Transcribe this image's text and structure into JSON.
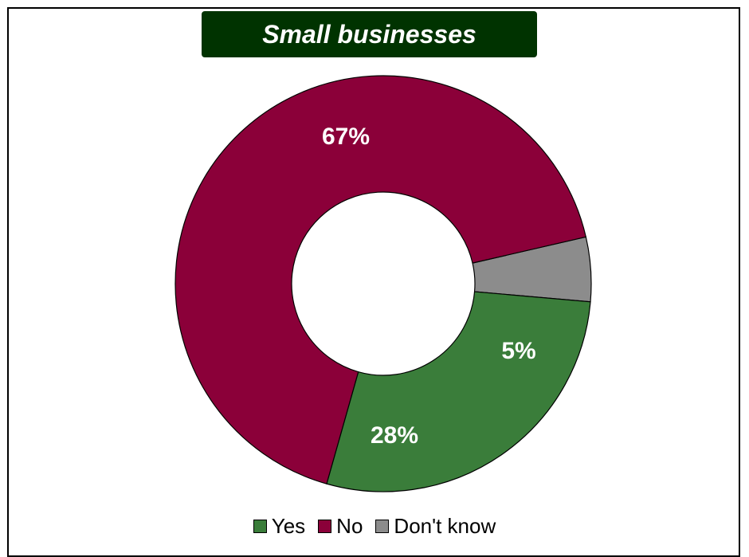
{
  "chart_data": {
    "type": "pie",
    "title": "Small businesses",
    "categories": [
      "Yes",
      "No",
      "Don't know"
    ],
    "values": [
      28,
      67,
      5
    ],
    "labels": [
      "28%",
      "67%",
      "5%"
    ],
    "colors": [
      "#3a7d3a",
      "#8b0039",
      "#8c8c8c"
    ],
    "donut": true,
    "legend_position": "bottom"
  },
  "legend": {
    "items": [
      {
        "label": "Yes",
        "color": "#3a7d3a"
      },
      {
        "label": "No",
        "color": "#8b0039"
      },
      {
        "label": "Don't know",
        "color": "#8c8c8c"
      }
    ]
  },
  "colors": {
    "title_bg": "#003300",
    "title_text": "#ffffff"
  }
}
